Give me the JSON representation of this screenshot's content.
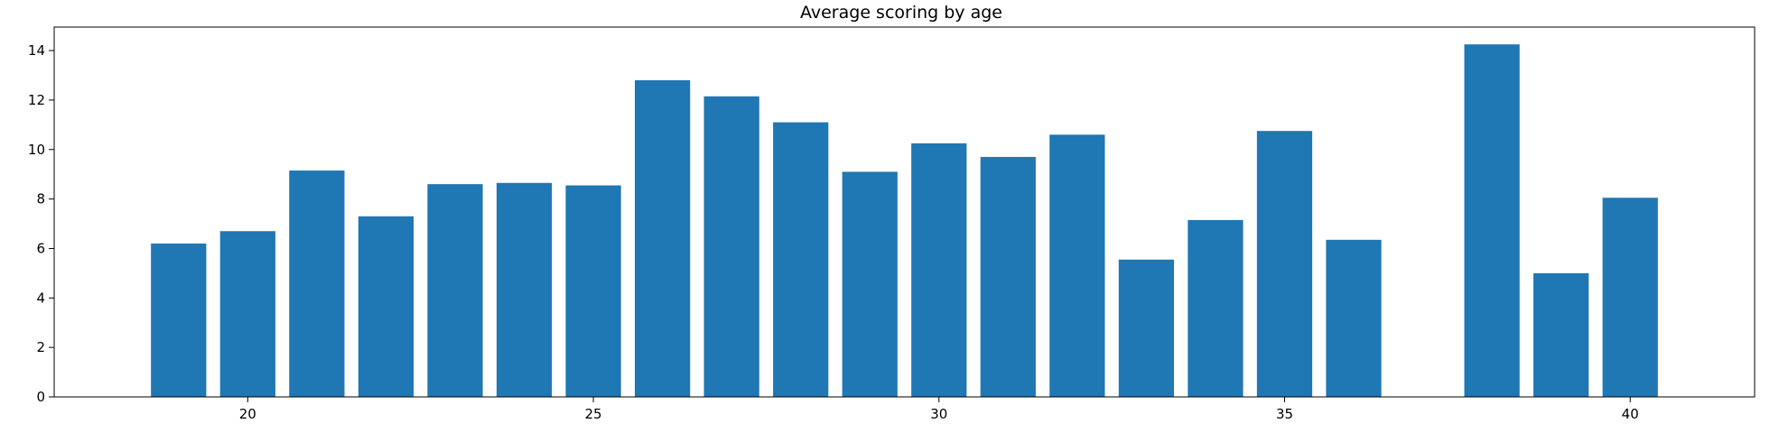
{
  "chart_data": {
    "type": "bar",
    "title": "Average scoring by age",
    "xlabel": "",
    "ylabel": "",
    "bar_color": "#1f77b4",
    "x": [
      19,
      20,
      21,
      22,
      23,
      24,
      25,
      26,
      27,
      28,
      29,
      30,
      31,
      32,
      33,
      34,
      35,
      36,
      38,
      39,
      40
    ],
    "values": [
      6.2,
      6.7,
      9.15,
      7.3,
      8.6,
      8.65,
      8.55,
      12.8,
      12.15,
      11.1,
      9.1,
      10.25,
      9.7,
      10.6,
      5.55,
      7.15,
      10.75,
      6.35,
      14.25,
      5.0,
      8.05
    ],
    "xlim": [
      17.2,
      41.8
    ],
    "ylim": [
      0,
      14.95
    ],
    "xticks": [
      20,
      25,
      30,
      35,
      40
    ],
    "yticks": [
      0,
      2,
      4,
      6,
      8,
      10,
      12,
      14
    ],
    "grid": false,
    "legend": "none"
  }
}
